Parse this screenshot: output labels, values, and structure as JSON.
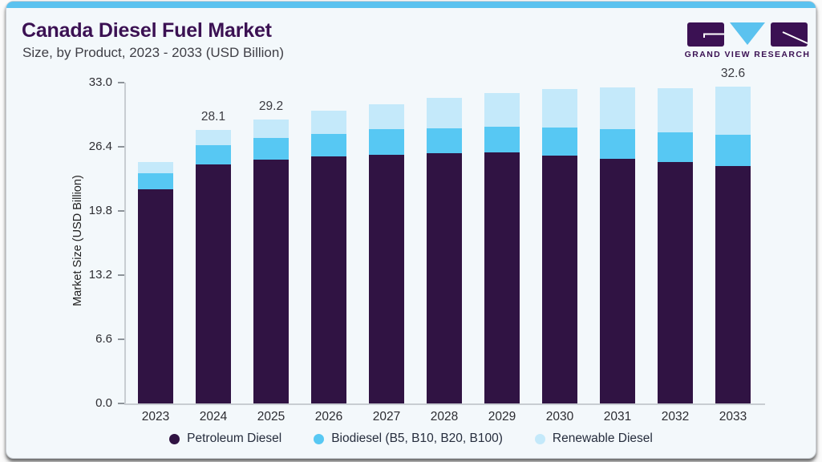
{
  "header": {
    "title": "Canada Diesel Fuel Market",
    "subtitle": "Size, by Product, 2023 - 2033 (USD Billion)"
  },
  "logo": {
    "text": "GRAND VIEW RESEARCH"
  },
  "colors": {
    "accent_bar": "#5bc2ef",
    "card_bg": "#f3f8fb",
    "title": "#3b1153",
    "petroleum": "#301343",
    "biodiesel": "#57c8f3",
    "renewable": "#c4e9fa"
  },
  "chart_data": {
    "type": "bar",
    "stacked": true,
    "title": "Canada Diesel Fuel Market",
    "subtitle": "Size, by Product, 2023 - 2033 (USD Billion)",
    "xlabel": "",
    "ylabel": "Market Size (USD Billion)",
    "categories": [
      "2023",
      "2024",
      "2025",
      "2026",
      "2027",
      "2028",
      "2029",
      "2030",
      "2031",
      "2032",
      "2033"
    ],
    "series": [
      {
        "name": "Petroleum Diesel",
        "color": "#301343",
        "values": [
          22.0,
          24.6,
          25.1,
          25.4,
          25.6,
          25.7,
          25.8,
          25.5,
          25.2,
          24.8,
          24.4
        ]
      },
      {
        "name": "Biodiesel (B5, B10, B20, B100)",
        "color": "#57c8f3",
        "values": [
          1.7,
          2.0,
          2.2,
          2.3,
          2.6,
          2.6,
          2.7,
          2.9,
          3.0,
          3.1,
          3.2
        ]
      },
      {
        "name": "Renewable Diesel",
        "color": "#c4e9fa",
        "values": [
          1.1,
          1.5,
          1.9,
          2.4,
          2.6,
          3.1,
          3.4,
          3.9,
          4.3,
          4.5,
          5.0
        ]
      }
    ],
    "totals_shown": {
      "2024": "28.1",
      "2025": "29.2",
      "2033": "32.6"
    },
    "ylim": [
      0,
      33.0
    ],
    "yticks": [
      "0.0",
      "6.6",
      "13.2",
      "19.8",
      "26.4",
      "33.0"
    ],
    "grid": false,
    "legend_position": "bottom"
  }
}
